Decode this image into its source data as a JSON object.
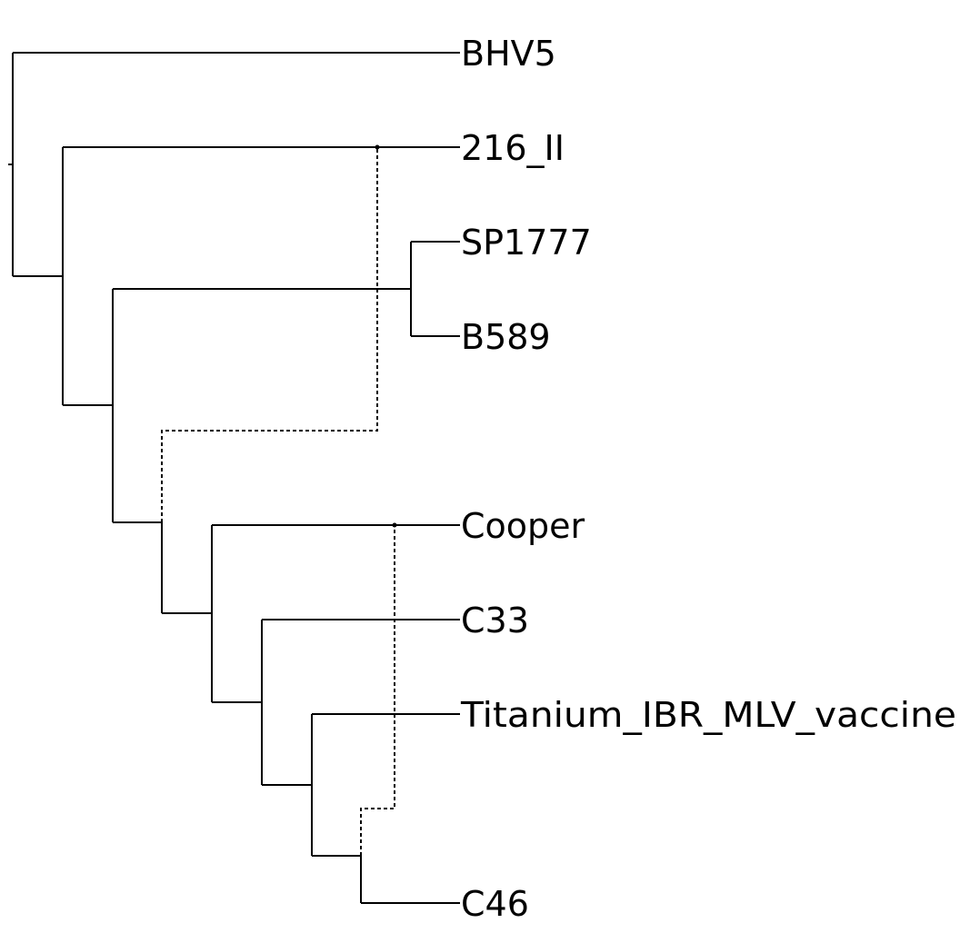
{
  "tree": {
    "leaves": [
      {
        "id": "bhv5",
        "label": "BHV5"
      },
      {
        "id": "216ii",
        "label": "216_II"
      },
      {
        "id": "sp1777",
        "label": "SP1777"
      },
      {
        "id": "b589",
        "label": "B589"
      },
      {
        "id": "cooper",
        "label": "Cooper"
      },
      {
        "id": "c33",
        "label": "C33"
      },
      {
        "id": "titanium",
        "label": "Titanium_IBR_MLV_vaccine"
      },
      {
        "id": "c46",
        "label": "C46"
      }
    ],
    "colors": {
      "branch": "#000000",
      "label": "#000000",
      "background": "#ffffff"
    },
    "reticulation_style": "dashed"
  }
}
